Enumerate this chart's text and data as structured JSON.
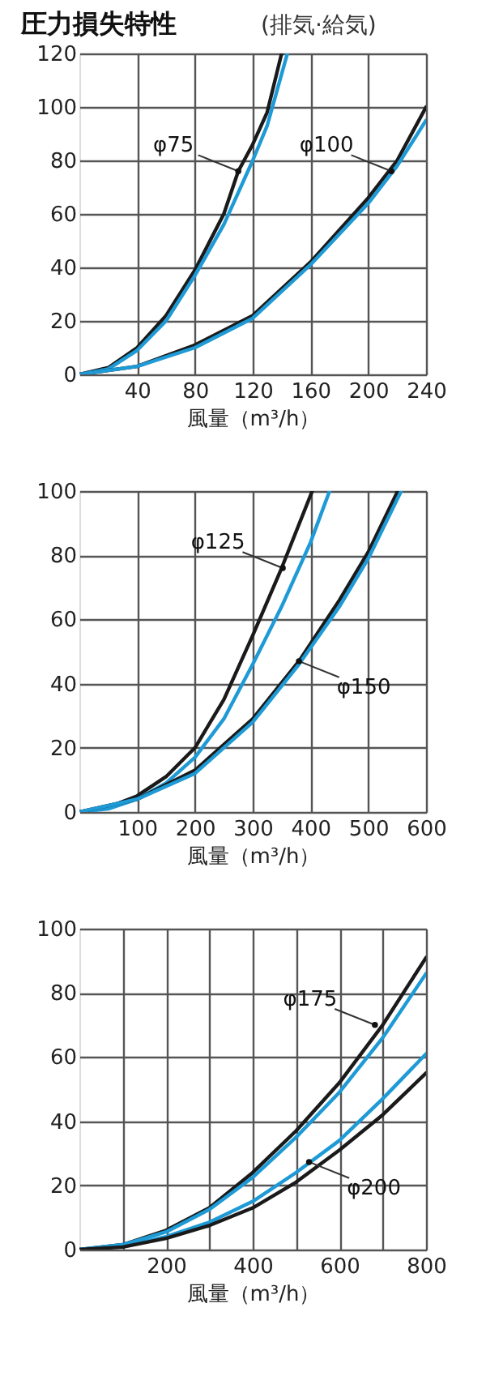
{
  "chart_data": [
    {
      "type": "line",
      "title": "圧力損失特性",
      "subtitle": "(排気·給気)",
      "xlabel": "風量（m³/h）",
      "xlim": [
        0,
        240
      ],
      "ylim": [
        0,
        120
      ],
      "xticks": [
        40,
        80,
        120,
        160,
        200,
        240
      ],
      "yticks": [
        0,
        20,
        40,
        60,
        80,
        100,
        120
      ],
      "grid": true,
      "marker": "none",
      "line_style": "solid",
      "annotations": [
        {
          "text": "φ75",
          "x": 110,
          "y": 76
        },
        {
          "text": "φ100",
          "x": 216,
          "y": 76
        }
      ],
      "series": [
        {
          "color": "#1a1a1a",
          "x": [
            0,
            20,
            40,
            60,
            80,
            100,
            110,
            120,
            130,
            140
          ],
          "values": [
            0,
            2.5,
            10,
            22,
            39,
            60,
            76,
            86,
            98,
            120
          ]
        },
        {
          "color": "#1e9ad6",
          "x": [
            0,
            20,
            40,
            60,
            80,
            100,
            120,
            130,
            144
          ],
          "values": [
            0,
            2,
            9,
            20,
            37,
            56,
            80,
            93,
            120
          ]
        },
        {
          "color": "#1a1a1a",
          "x": [
            0,
            40,
            80,
            120,
            160,
            200,
            220,
            240
          ],
          "values": [
            0,
            3,
            11,
            22,
            42,
            66,
            80,
            100
          ]
        },
        {
          "color": "#1e9ad6",
          "x": [
            0,
            40,
            80,
            120,
            160,
            200,
            220,
            240
          ],
          "values": [
            0,
            3,
            10,
            21,
            41,
            64,
            78,
            95
          ]
        }
      ]
    },
    {
      "type": "line",
      "xlabel": "風量（m³/h）",
      "xlim": [
        0,
        600
      ],
      "ylim": [
        0,
        100
      ],
      "xticks": [
        100,
        200,
        300,
        400,
        500,
        600
      ],
      "yticks": [
        0,
        20,
        40,
        60,
        80,
        100
      ],
      "grid": true,
      "marker": "none",
      "line_style": "solid",
      "annotations": [
        {
          "text": "φ125",
          "x": 352,
          "y": 76
        },
        {
          "text": "φ150",
          "x": 380,
          "y": 47
        }
      ],
      "series": [
        {
          "color": "#1a1a1a",
          "x": [
            0,
            50,
            100,
            150,
            200,
            250,
            300,
            350,
            403
          ],
          "values": [
            0,
            1.5,
            5,
            11,
            20,
            35,
            55,
            76,
            100
          ]
        },
        {
          "color": "#1e9ad6",
          "x": [
            0,
            50,
            100,
            150,
            200,
            250,
            300,
            350,
            400,
            433
          ],
          "values": [
            0,
            1,
            4,
            9,
            17,
            29,
            46,
            64,
            84,
            100
          ]
        },
        {
          "color": "#1a1a1a",
          "x": [
            0,
            100,
            200,
            300,
            380,
            450,
            500,
            551
          ],
          "values": [
            0,
            4,
            13,
            29,
            47,
            66,
            81,
            100
          ]
        },
        {
          "color": "#1e9ad6",
          "x": [
            0,
            100,
            200,
            300,
            380,
            450,
            500,
            557
          ],
          "values": [
            0,
            4,
            12,
            28,
            46,
            64,
            79,
            100
          ]
        }
      ]
    },
    {
      "type": "line",
      "xlabel": "風量（m³/h）",
      "xlim": [
        0,
        800
      ],
      "ylim": [
        0,
        100
      ],
      "xticks": [
        {
          "value": 100,
          "label": null
        },
        200,
        {
          "value": 300,
          "label": null
        },
        400,
        {
          "value": 500,
          "label": null
        },
        600,
        {
          "value": 700,
          "label": null
        },
        800
      ],
      "yticks": [
        0,
        20,
        40,
        60,
        80,
        100
      ],
      "grid": true,
      "marker": "none",
      "line_style": "solid",
      "annotations": [
        {
          "text": "φ175",
          "x": 682,
          "y": 70
        },
        {
          "text": "φ200",
          "x": 530,
          "y": 27.3
        }
      ],
      "series": [
        {
          "color": "#1a1a1a",
          "x": [
            0,
            100,
            200,
            300,
            400,
            500,
            600,
            700,
            800
          ],
          "values": [
            0,
            1.5,
            6,
            13,
            24,
            37,
            52,
            70,
            91
          ]
        },
        {
          "color": "#1e9ad6",
          "x": [
            0,
            100,
            200,
            300,
            400,
            500,
            600,
            700,
            800
          ],
          "values": [
            0,
            1.5,
            5.5,
            12.5,
            22.5,
            35,
            49,
            66,
            86
          ]
        },
        {
          "color": "#1e9ad6",
          "x": [
            0,
            100,
            200,
            300,
            400,
            500,
            600,
            700,
            800
          ],
          "values": [
            0,
            1,
            4,
            8.5,
            15,
            24,
            34,
            47,
            61
          ]
        },
        {
          "color": "#1a1a1a",
          "x": [
            0,
            100,
            200,
            300,
            400,
            500,
            600,
            700,
            800
          ],
          "values": [
            0,
            0.8,
            3.5,
            7.5,
            13,
            21,
            31,
            42,
            55
          ]
        }
      ]
    }
  ]
}
